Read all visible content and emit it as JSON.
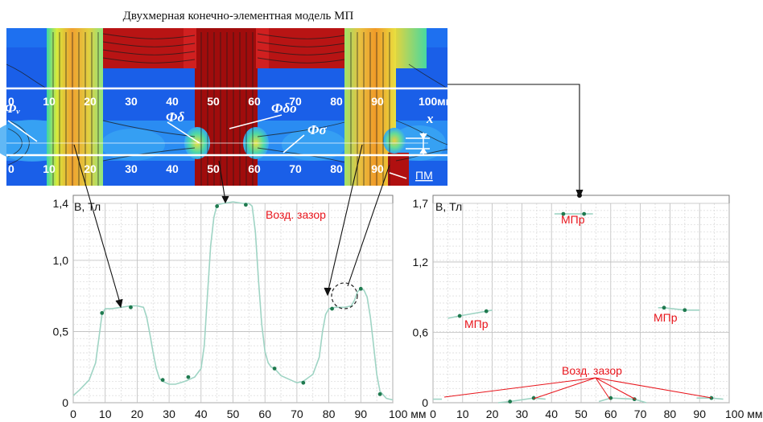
{
  "figure": {
    "title": "Двухмерная конечно-элементная модель МП",
    "fem": {
      "ruler_top": [
        "0",
        "10",
        "20",
        "30",
        "40",
        "50",
        "60",
        "70",
        "80",
        "90",
        "100мм"
      ],
      "ruler_bottom": [
        "0",
        "10",
        "20",
        "30",
        "40",
        "50",
        "60",
        "70",
        "80",
        "90"
      ],
      "flux_labels": {
        "phi_v": "Фᵥ",
        "phi_delta": "Фδ",
        "phi_delta0": "Фδо",
        "phi_sigma": "Фσ",
        "x": "x"
      },
      "pm_label": "ПМ"
    }
  },
  "chart_data": [
    {
      "type": "line",
      "xlabel": "мм",
      "ylabel": "B, Тл",
      "xlim": [
        0,
        100
      ],
      "ylim": [
        0,
        1.4
      ],
      "x_ticks": [
        "0",
        "10",
        "20",
        "30",
        "40",
        "50",
        "60",
        "70",
        "80",
        "90",
        "100 мм"
      ],
      "y_ticks": [
        "0",
        "0,5",
        "1,0",
        "1,4"
      ],
      "grid": true,
      "annotation": "Возд. зазор",
      "series": [
        {
          "x": [
            0,
            2,
            5,
            7,
            8,
            9,
            10,
            12,
            15,
            18,
            20,
            22,
            23,
            24,
            25,
            26,
            27,
            28,
            30,
            32,
            35,
            38,
            40,
            41,
            42,
            43,
            44,
            45,
            47,
            50,
            53,
            55,
            56,
            57,
            58,
            59,
            60,
            61,
            62,
            63,
            65,
            68,
            70,
            72,
            75,
            77,
            78,
            79,
            80,
            82,
            85,
            87,
            88,
            89,
            90,
            91,
            92,
            93,
            94,
            95,
            96,
            98,
            100
          ],
          "y": [
            0.05,
            0.09,
            0.16,
            0.28,
            0.45,
            0.62,
            0.66,
            0.66,
            0.67,
            0.68,
            0.68,
            0.67,
            0.6,
            0.48,
            0.35,
            0.24,
            0.17,
            0.15,
            0.13,
            0.13,
            0.15,
            0.18,
            0.24,
            0.4,
            0.75,
            1.1,
            1.3,
            1.39,
            1.4,
            1.41,
            1.4,
            1.4,
            1.38,
            1.2,
            0.85,
            0.55,
            0.36,
            0.28,
            0.25,
            0.24,
            0.19,
            0.16,
            0.14,
            0.15,
            0.2,
            0.32,
            0.5,
            0.62,
            0.66,
            0.67,
            0.67,
            0.68,
            0.72,
            0.78,
            0.8,
            0.79,
            0.74,
            0.6,
            0.4,
            0.2,
            0.08,
            0.03,
            0.02
          ]
        }
      ],
      "points": [
        {
          "x": 9,
          "y": 0.63
        },
        {
          "x": 18,
          "y": 0.67
        },
        {
          "x": 28,
          "y": 0.16
        },
        {
          "x": 36,
          "y": 0.18
        },
        {
          "x": 45,
          "y": 1.38
        },
        {
          "x": 54,
          "y": 1.39
        },
        {
          "x": 63,
          "y": 0.24
        },
        {
          "x": 72,
          "y": 0.14
        },
        {
          "x": 81,
          "y": 0.66
        },
        {
          "x": 90,
          "y": 0.8
        },
        {
          "x": 96,
          "y": 0.06
        }
      ]
    },
    {
      "type": "scatter",
      "xlabel": "мм",
      "ylabel": "B, Тл",
      "xlim": [
        0,
        100
      ],
      "ylim": [
        0,
        1.7
      ],
      "x_ticks": [
        "0",
        "10",
        "20",
        "30",
        "40",
        "50",
        "60",
        "70",
        "80",
        "90",
        "100 мм"
      ],
      "y_ticks": [
        "0",
        "0,6",
        "1,2",
        "1,7"
      ],
      "grid": true,
      "labels": {
        "mpr_top": "МПр",
        "mpr_left": "МПр",
        "mpr_right": "МПр",
        "gap": "Возд. зазор"
      },
      "segments": [
        {
          "x": [
            41,
            44,
            51,
            54
          ],
          "y": [
            1.61,
            1.61,
            1.61,
            1.61
          ],
          "points": [
            {
              "x": 44,
              "y": 1.61
            },
            {
              "x": 51,
              "y": 1.61
            }
          ]
        },
        {
          "x": [
            5,
            9,
            18,
            20
          ],
          "y": [
            0.72,
            0.74,
            0.78,
            0.79
          ],
          "points": [
            {
              "x": 9,
              "y": 0.74
            },
            {
              "x": 18,
              "y": 0.78
            }
          ]
        },
        {
          "x": [
            76,
            78,
            85,
            90
          ],
          "y": [
            0.81,
            0.81,
            0.79,
            0.79
          ],
          "points": [
            {
              "x": 78,
              "y": 0.81
            },
            {
              "x": 85,
              "y": 0.79
            }
          ]
        },
        {
          "x": [
            0,
            3
          ],
          "y": [
            0.03,
            0.03
          ],
          "points": []
        },
        {
          "x": [
            22,
            26,
            34,
            38
          ],
          "y": [
            0.0,
            0.01,
            0.04,
            0.03
          ],
          "points": [
            {
              "x": 26,
              "y": 0.01
            },
            {
              "x": 34,
              "y": 0.04
            }
          ]
        },
        {
          "x": [
            56,
            60,
            68,
            72
          ],
          "y": [
            0.01,
            0.04,
            0.03,
            0.0
          ],
          "points": [
            {
              "x": 60,
              "y": 0.04
            },
            {
              "x": 68,
              "y": 0.03
            }
          ]
        },
        {
          "x": [
            89,
            94,
            98
          ],
          "y": [
            0.04,
            0.04,
            0.03
          ],
          "points": [
            {
              "x": 94,
              "y": 0.04
            }
          ]
        }
      ]
    }
  ]
}
